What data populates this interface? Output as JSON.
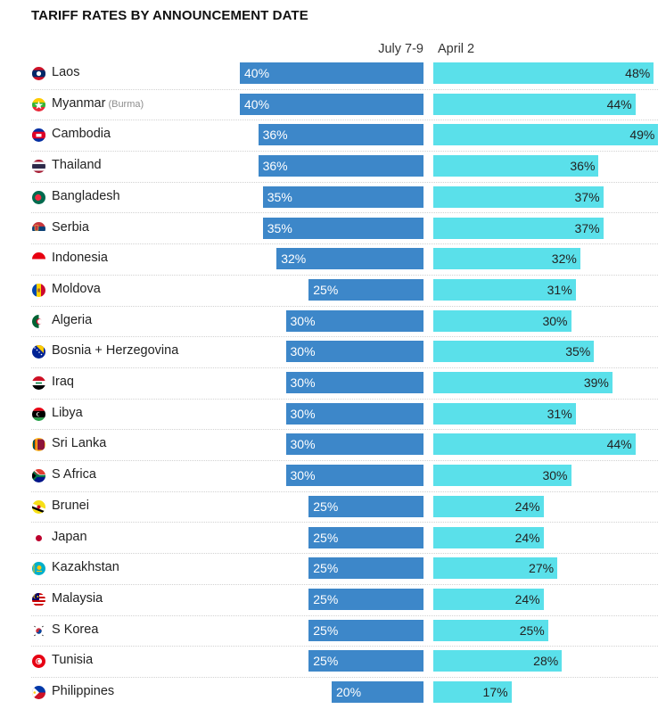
{
  "title": "TARIFF RATES BY ANNOUNCEMENT DATE",
  "chart_data": {
    "type": "bar",
    "title": "TARIFF RATES BY ANNOUNCEMENT DATE",
    "orientation": "horizontal-diverging",
    "series": [
      {
        "name": "July 7-9",
        "color": "#3d87c9",
        "values": [
          40,
          40,
          36,
          36,
          35,
          35,
          32,
          25,
          30,
          30,
          30,
          30,
          30,
          30,
          25,
          25,
          25,
          25,
          25,
          25,
          20
        ]
      },
      {
        "name": "April 2",
        "color": "#5ae0ea",
        "values": [
          48,
          44,
          49,
          36,
          37,
          37,
          32,
          31,
          30,
          35,
          39,
          31,
          44,
          30,
          24,
          24,
          27,
          24,
          25,
          28,
          17
        ]
      }
    ],
    "categories": [
      "Laos",
      "Myanmar",
      "Cambodia",
      "Thailand",
      "Bangladesh",
      "Serbia",
      "Indonesia",
      "Moldova",
      "Algeria",
      "Bosnia + Herzegovina",
      "Iraq",
      "Libya",
      "Sri Lanka",
      "S Africa",
      "Brunei",
      "Japan",
      "Kazakhstan",
      "Malaysia",
      "S Korea",
      "Tunisia",
      "Philippines"
    ],
    "category_notes": [
      "",
      "(Burma)",
      "",
      "",
      "",
      "",
      "",
      "",
      "",
      "",
      "",
      "",
      "",
      "",
      "",
      "",
      "",
      "",
      "",
      "",
      ""
    ],
    "value_suffix": "%",
    "xlim": [
      0,
      50
    ],
    "legend": "column-headers"
  },
  "flags": [
    "laos-flag-icon",
    "myanmar-flag-icon",
    "cambodia-flag-icon",
    "thailand-flag-icon",
    "bangladesh-flag-icon",
    "serbia-flag-icon",
    "indonesia-flag-icon",
    "moldova-flag-icon",
    "algeria-flag-icon",
    "bosnia-flag-icon",
    "iraq-flag-icon",
    "libya-flag-icon",
    "sri-lanka-flag-icon",
    "south-africa-flag-icon",
    "brunei-flag-icon",
    "japan-flag-icon",
    "kazakhstan-flag-icon",
    "malaysia-flag-icon",
    "south-korea-flag-icon",
    "tunisia-flag-icon",
    "philippines-flag-icon"
  ]
}
